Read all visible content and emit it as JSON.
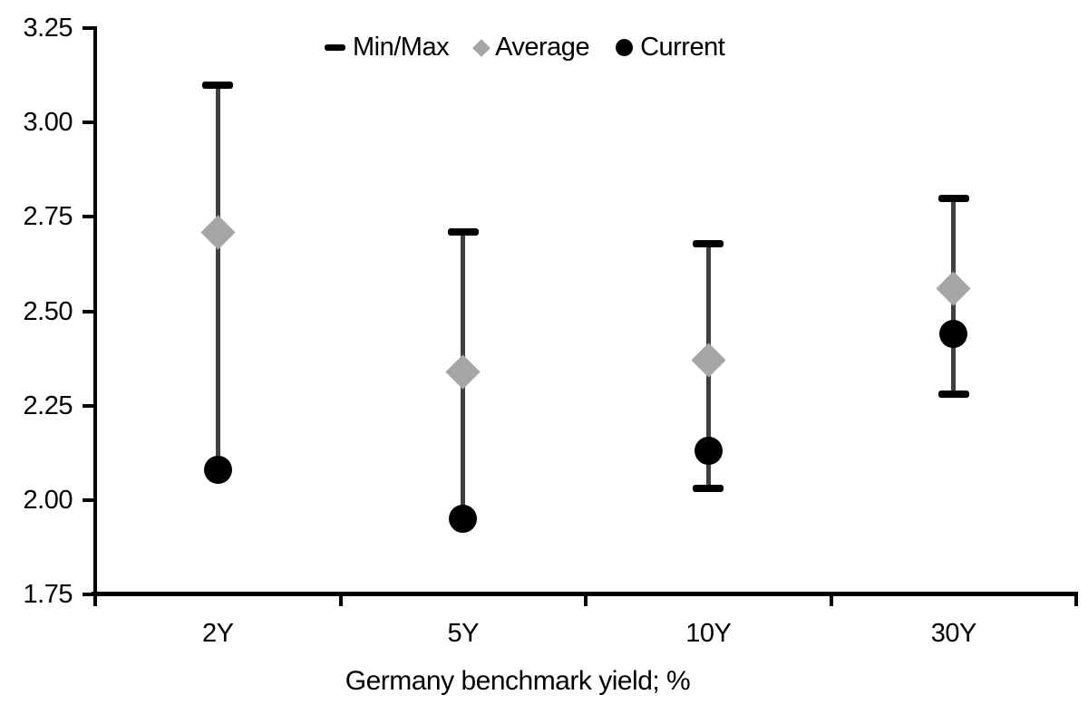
{
  "chart_data": {
    "type": "scatter",
    "subtype": "min-max-range",
    "title": "",
    "xlabel": "Germany benchmark yield; %",
    "ylabel": "",
    "categories": [
      "2Y",
      "5Y",
      "10Y",
      "30Y"
    ],
    "series": [
      {
        "name": "Min/Max",
        "marker": "dash",
        "color": "#000000",
        "min": [
          2.08,
          1.95,
          2.03,
          2.28
        ],
        "max": [
          3.1,
          2.71,
          2.68,
          2.8
        ]
      },
      {
        "name": "Average",
        "marker": "diamond",
        "color": "#a6a6a6",
        "values": [
          2.71,
          2.34,
          2.37,
          2.56
        ]
      },
      {
        "name": "Current",
        "marker": "circle",
        "color": "#000000",
        "values": [
          2.08,
          1.95,
          2.13,
          2.44
        ]
      }
    ],
    "ylim": [
      1.75,
      3.25
    ],
    "ytick_step": 0.25,
    "ytick_labels": [
      "3.25",
      "3.00",
      "2.75",
      "2.50",
      "2.25",
      "2.00",
      "1.75"
    ],
    "grid": false,
    "legend_position": "top-center"
  },
  "colors": {
    "range_line": "#3f3f3f",
    "marker_black": "#000000",
    "average_gray": "#a6a6a6",
    "axis": "#000000",
    "background": "#ffffff",
    "text": "#000000"
  }
}
